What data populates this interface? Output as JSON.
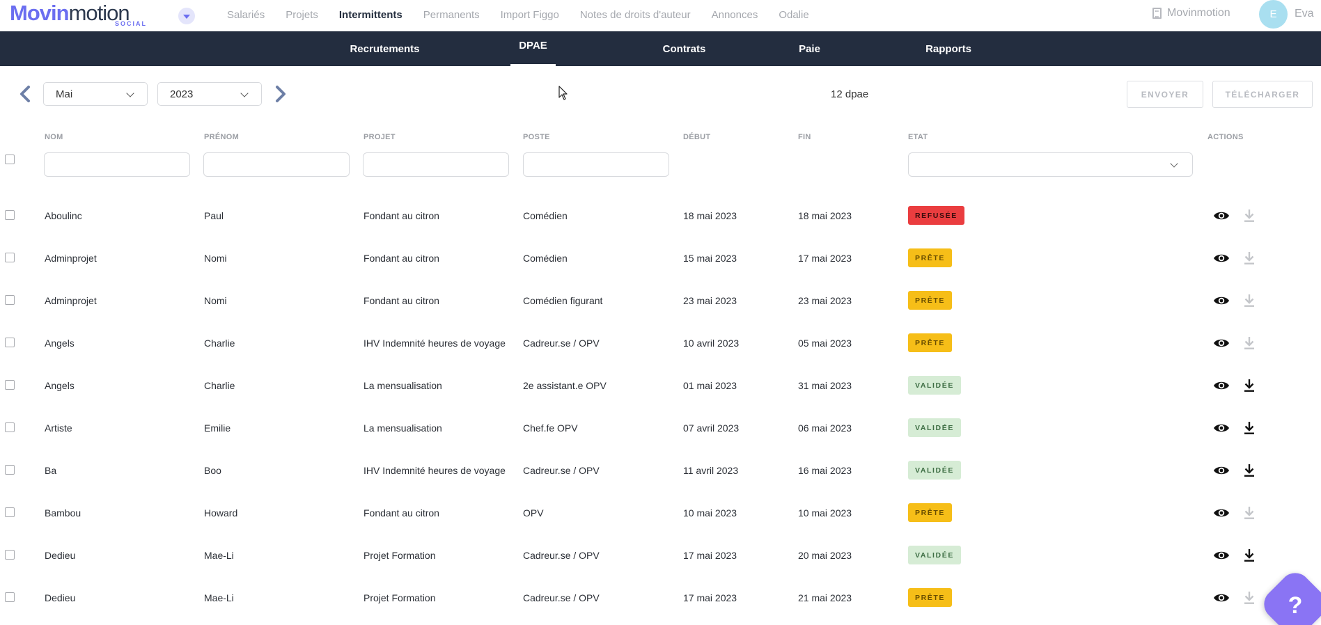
{
  "logo": {
    "main_bold": "Movin",
    "main_light": "motion",
    "sub": "SOCIAL"
  },
  "top_nav": {
    "links": [
      "Salariés",
      "Projets",
      "Intermittents",
      "Permanents",
      "Import Figgo",
      "Notes de droits d'auteur",
      "Annonces",
      "Odalie"
    ],
    "active": "Intermittents",
    "org_name": "Movinmotion",
    "user_initial": "E",
    "user_name": "Eva"
  },
  "sub_nav": {
    "tabs": [
      "Recrutements",
      "DPAE",
      "Contrats",
      "Paie",
      "Rapports"
    ],
    "active": "DPAE"
  },
  "toolbar": {
    "month": "Mai",
    "year": "2023",
    "count_text": "12 dpae",
    "send_label": "ENVOYER",
    "download_label": "TÉLÉCHARGER"
  },
  "table": {
    "headers": [
      "NOM",
      "PRÉNOM",
      "PROJET",
      "POSTE",
      "DÉBUT",
      "FIN",
      "ETAT",
      "ACTIONS"
    ],
    "rows": [
      {
        "nom": "Aboulinc",
        "prenom": "Paul",
        "projet": "Fondant au citron",
        "poste": "Comédien",
        "debut": "18 mai 2023",
        "fin": "18 mai 2023",
        "etat": "REFUSÉE",
        "etat_type": "red",
        "download_enabled": false
      },
      {
        "nom": "Adminprojet",
        "prenom": "Nomi",
        "projet": "Fondant au citron",
        "poste": "Comédien",
        "debut": "15 mai 2023",
        "fin": "17 mai 2023",
        "etat": "PRÊTE",
        "etat_type": "yellow",
        "download_enabled": false
      },
      {
        "nom": "Adminprojet",
        "prenom": "Nomi",
        "projet": "Fondant au citron",
        "poste": "Comédien figurant",
        "debut": "23 mai 2023",
        "fin": "23 mai 2023",
        "etat": "PRÊTE",
        "etat_type": "yellow",
        "download_enabled": false
      },
      {
        "nom": "Angels",
        "prenom": "Charlie",
        "projet": "IHV Indemnité heures de voyage",
        "poste": "Cadreur.se / OPV",
        "debut": "10 avril 2023",
        "fin": "05 mai 2023",
        "etat": "PRÊTE",
        "etat_type": "yellow",
        "download_enabled": false
      },
      {
        "nom": "Angels",
        "prenom": "Charlie",
        "projet": "La mensualisation",
        "poste": "2e assistant.e OPV",
        "debut": "01 mai 2023",
        "fin": "31 mai 2023",
        "etat": "VALIDÉE",
        "etat_type": "green",
        "download_enabled": true
      },
      {
        "nom": "Artiste",
        "prenom": "Emilie",
        "projet": "La mensualisation",
        "poste": "Chef.fe OPV",
        "debut": "07 avril 2023",
        "fin": "06 mai 2023",
        "etat": "VALIDÉE",
        "etat_type": "green",
        "download_enabled": true
      },
      {
        "nom": "Ba",
        "prenom": "Boo",
        "projet": "IHV Indemnité heures de voyage",
        "poste": "Cadreur.se / OPV",
        "debut": "11 avril 2023",
        "fin": "16 mai 2023",
        "etat": "VALIDÉE",
        "etat_type": "green",
        "download_enabled": true
      },
      {
        "nom": "Bambou",
        "prenom": "Howard",
        "projet": "Fondant au citron",
        "poste": "OPV",
        "debut": "10 mai 2023",
        "fin": "10 mai 2023",
        "etat": "PRÊTE",
        "etat_type": "yellow",
        "download_enabled": false
      },
      {
        "nom": "Dedieu",
        "prenom": "Mae-Li",
        "projet": "Projet Formation",
        "poste": "Cadreur.se / OPV",
        "debut": "17 mai 2023",
        "fin": "20 mai 2023",
        "etat": "VALIDÉE",
        "etat_type": "green",
        "download_enabled": true
      },
      {
        "nom": "Dedieu",
        "prenom": "Mae-Li",
        "projet": "Projet Formation",
        "poste": "Cadreur.se / OPV",
        "debut": "17 mai 2023",
        "fin": "21 mai 2023",
        "etat": "PRÊTE",
        "etat_type": "yellow",
        "download_enabled": false
      }
    ]
  },
  "help": {
    "label": "?"
  },
  "colors": {
    "navy": "#232d3f",
    "brand": "#6b6ef0",
    "red": "#ea3d3f",
    "yellow": "#f6be18",
    "green": "#d6ecd5",
    "help": "#8a74f4"
  },
  "icons": {
    "view": "eye-icon",
    "download": "download-icon",
    "prev": "chevron-left-icon",
    "next": "chevron-right-icon"
  }
}
